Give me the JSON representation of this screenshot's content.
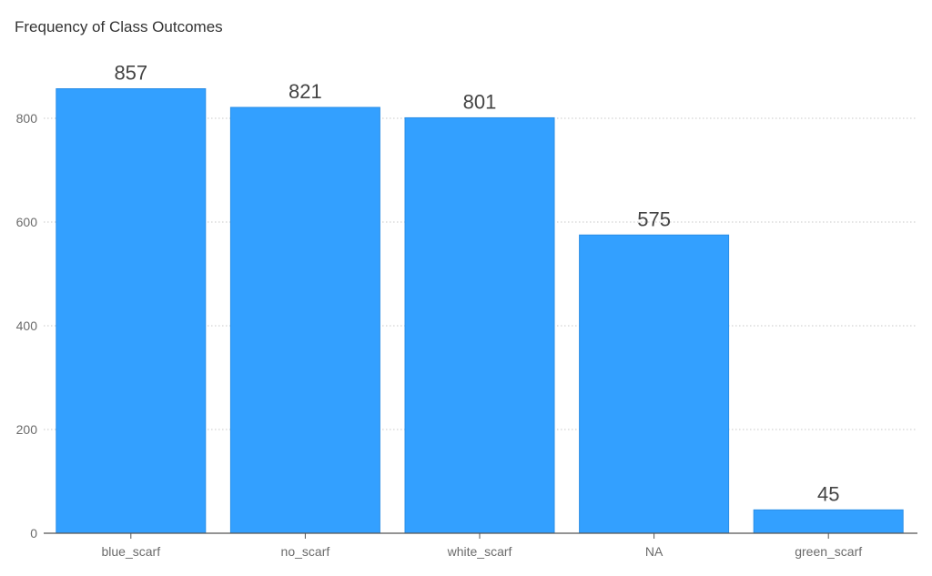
{
  "chart_data": {
    "type": "bar",
    "title": "Frequency of Class Outcomes",
    "xlabel": "",
    "ylabel": "",
    "categories": [
      "blue_scarf",
      "no_scarf",
      "white_scarf",
      "NA",
      "green_scarf"
    ],
    "values": [
      857,
      821,
      801,
      575,
      45
    ],
    "data_labels": [
      "857",
      "821",
      "801",
      "575",
      "45"
    ],
    "ylim": [
      0,
      900
    ],
    "yticks": [
      0,
      200,
      400,
      600,
      800
    ],
    "grid": true,
    "legend": "none",
    "bar_color": "#33a0ff",
    "bar_stroke": "#2a8ee6"
  }
}
